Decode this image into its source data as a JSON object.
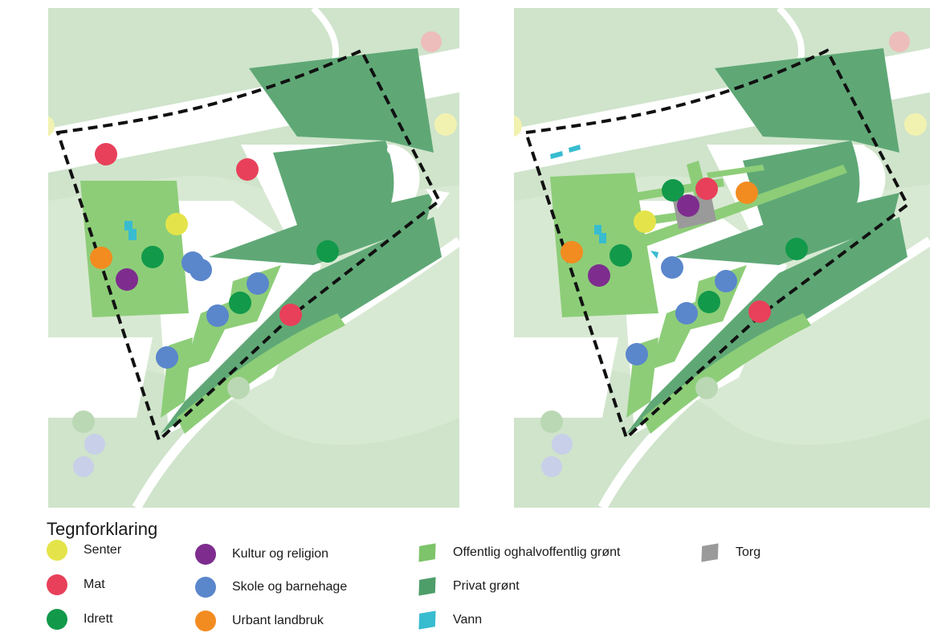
{
  "legend": {
    "title": "Tegnforklaring",
    "items": [
      {
        "id": "senter",
        "label": "Senter",
        "color": "#e4e44a",
        "shape": "circle"
      },
      {
        "id": "mat",
        "label": "Mat",
        "color": "#e8405a",
        "shape": "circle"
      },
      {
        "id": "idrett",
        "label": "Idrett",
        "color": "#12994a",
        "shape": "circle"
      },
      {
        "id": "kultur",
        "label": "Kultur og religion",
        "color": "#7e2d8e",
        "shape": "circle"
      },
      {
        "id": "skole",
        "label": "Skole og barnehage",
        "color": "#5a86cc",
        "shape": "circle"
      },
      {
        "id": "urbant",
        "label": "Urbant landbruk",
        "color": "#f28c20",
        "shape": "circle"
      },
      {
        "id": "offentlig",
        "label": "Offentlig  oghalvoffentlig grønt",
        "color": "#7dc46a",
        "shape": "square"
      },
      {
        "id": "privat",
        "label": "Privat grønt",
        "color": "#4e9e6a",
        "shape": "square"
      },
      {
        "id": "vann",
        "label": "Vann",
        "color": "#38bcd0",
        "shape": "square"
      },
      {
        "id": "torg",
        "label": "Torg",
        "color": "#9a9a9a",
        "shape": "square"
      }
    ]
  },
  "maps": {
    "left": {
      "markers": [
        {
          "type": "mat"
        },
        {
          "type": "mat"
        },
        {
          "type": "senter"
        },
        {
          "type": "urbant"
        },
        {
          "type": "idrett"
        },
        {
          "type": "kultur"
        },
        {
          "type": "skole"
        },
        {
          "type": "skole"
        },
        {
          "type": "skole"
        },
        {
          "type": "idrett"
        },
        {
          "type": "skole"
        },
        {
          "type": "mat"
        },
        {
          "type": "skole"
        },
        {
          "type": "idrett"
        }
      ]
    },
    "right": {
      "markers": [
        {
          "type": "idrett"
        },
        {
          "type": "mat"
        },
        {
          "type": "kultur"
        },
        {
          "type": "urbant"
        },
        {
          "type": "senter"
        },
        {
          "type": "urbant"
        },
        {
          "type": "idrett"
        },
        {
          "type": "kultur"
        },
        {
          "type": "skole"
        },
        {
          "type": "skole"
        },
        {
          "type": "skole"
        },
        {
          "type": "idrett"
        },
        {
          "type": "mat"
        },
        {
          "type": "skole"
        },
        {
          "type": "idrett"
        }
      ]
    }
  }
}
